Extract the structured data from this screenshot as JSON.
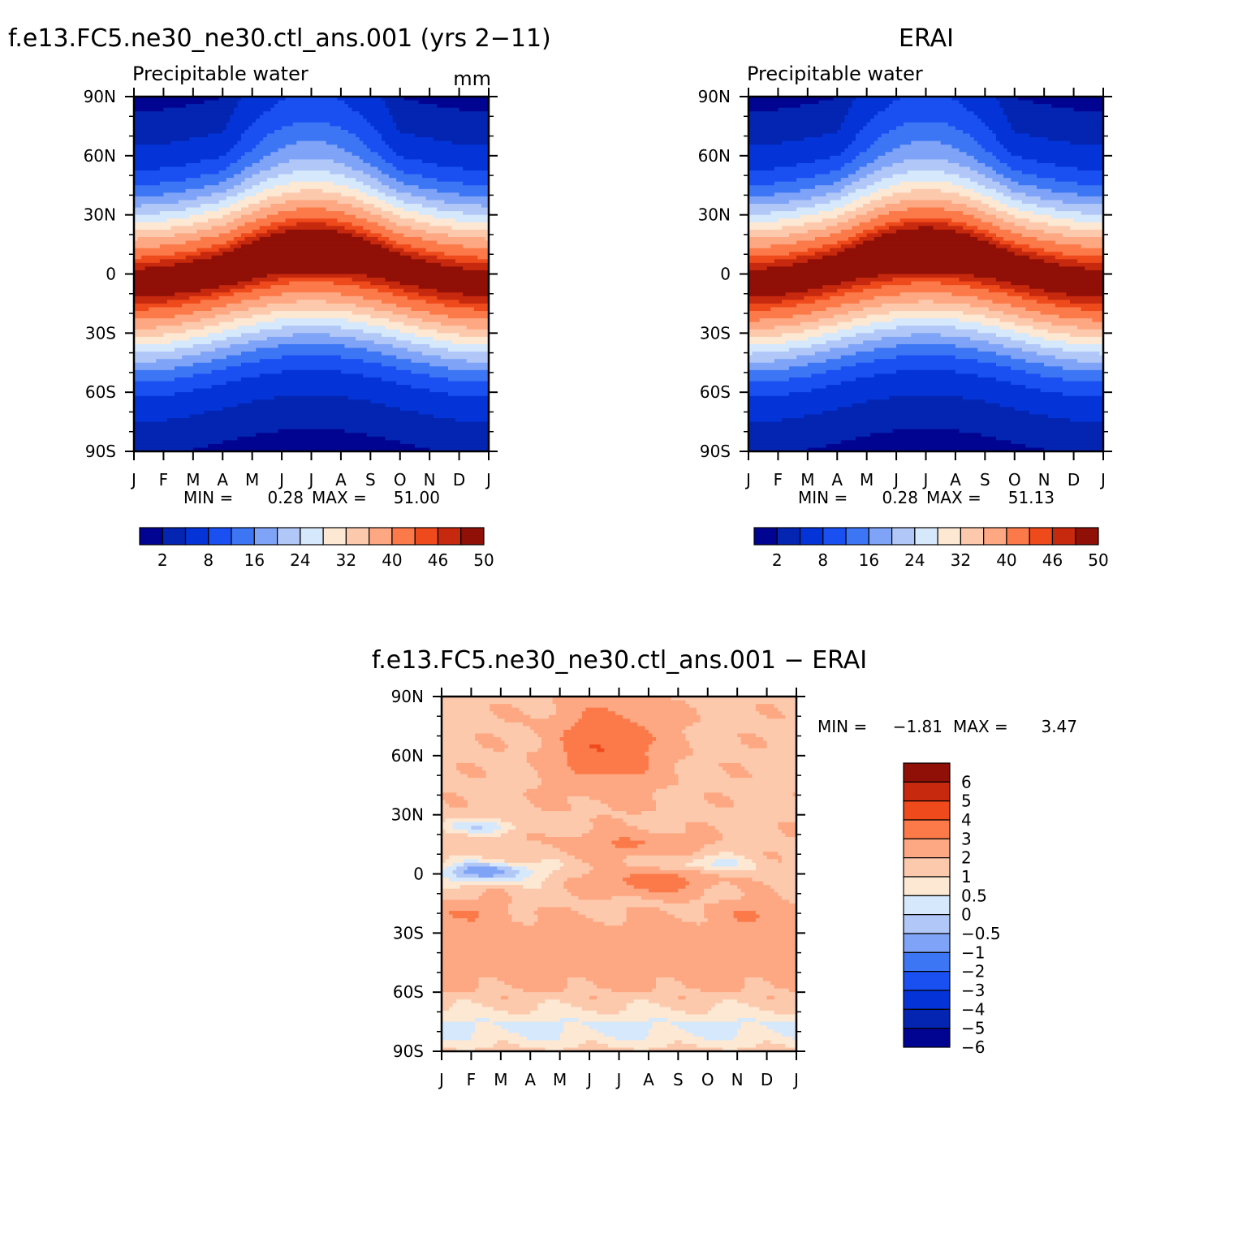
{
  "colors": {
    "precip_palette": [
      "#000490",
      "#0325b1",
      "#0434d8",
      "#1a50f2",
      "#3d76f5",
      "#7fa3f7",
      "#b1c7f8",
      "#d6e8fc",
      "#fde8d4",
      "#fdc9ad",
      "#fda882",
      "#fc7a4a",
      "#ef4a1c",
      "#c7290e",
      "#900f07"
    ],
    "diff_palette": [
      "#000490",
      "#0325b1",
      "#0434d8",
      "#1a50f2",
      "#3d76f5",
      "#7fa3f7",
      "#b1c7f8",
      "#d6e8fc",
      "#fde8d4",
      "#fdc9ad",
      "#fda882",
      "#fc7a4a",
      "#ef4a1c",
      "#c7290e",
      "#900f07"
    ]
  },
  "chart_data": [
    {
      "type": "heatmap",
      "title": "f.e13.FC5.ne30_ne30.ctl_ans.001 (yrs 2−11)",
      "subtitle": "Precipitable water",
      "units": "mm",
      "x_ticks": [
        "J",
        "F",
        "M",
        "A",
        "M",
        "J",
        "J",
        "A",
        "S",
        "O",
        "N",
        "D",
        "J"
      ],
      "y_ticks": [
        "90N",
        "60N",
        "30N",
        "0",
        "30S",
        "60S",
        "90S"
      ],
      "y_values": [
        90,
        60,
        30,
        0,
        -30,
        -60,
        -90
      ],
      "min_label": "MIN =",
      "min_value": "0.28",
      "max_label": "MAX =",
      "max_value": "51.00",
      "levels": [
        2,
        4,
        8,
        12,
        16,
        20,
        24,
        28,
        32,
        36,
        40,
        44,
        46,
        48,
        50
      ],
      "colorbar_labels": [
        "2",
        "8",
        "16",
        "24",
        "32",
        "40",
        "46",
        "50"
      ],
      "zmin": 0.28,
      "zmax": 51.0
    },
    {
      "type": "heatmap",
      "title": "ERAI",
      "subtitle": "Precipitable water",
      "x_ticks": [
        "J",
        "F",
        "M",
        "A",
        "M",
        "J",
        "J",
        "A",
        "S",
        "O",
        "N",
        "D",
        "J"
      ],
      "y_ticks": [
        "90N",
        "60N",
        "30N",
        "0",
        "30S",
        "60S",
        "90S"
      ],
      "y_values": [
        90,
        60,
        30,
        0,
        -30,
        -60,
        -90
      ],
      "min_label": "MIN =",
      "min_value": "0.28",
      "max_label": "MAX =",
      "max_value": "51.13",
      "levels": [
        2,
        4,
        8,
        12,
        16,
        20,
        24,
        28,
        32,
        36,
        40,
        44,
        46,
        48,
        50
      ],
      "colorbar_labels": [
        "2",
        "8",
        "16",
        "24",
        "32",
        "40",
        "46",
        "50"
      ],
      "zmin": 0.28,
      "zmax": 51.13
    },
    {
      "type": "heatmap",
      "title": "f.e13.FC5.ne30_ne30.ctl_ans.001 − ERAI",
      "x_ticks": [
        "J",
        "F",
        "M",
        "A",
        "M",
        "J",
        "J",
        "A",
        "S",
        "O",
        "N",
        "D",
        "J"
      ],
      "y_ticks": [
        "90N",
        "60N",
        "30N",
        "0",
        "30S",
        "60S",
        "90S"
      ],
      "y_values": [
        90,
        60,
        30,
        0,
        -30,
        -60,
        -90
      ],
      "min_label": "MIN =",
      "min_value": "−1.81",
      "max_label": "MAX =",
      "max_value": "3.47",
      "levels": [
        -6,
        -5,
        -4,
        -3,
        -2,
        -1,
        -0.5,
        0,
        0.5,
        1,
        2,
        3,
        4,
        5,
        6
      ],
      "colorbar_labels": [
        "6",
        "5",
        "4",
        "3",
        "2",
        "1",
        "0.5",
        "0",
        "−0.5",
        "−1",
        "−2",
        "−3",
        "−4",
        "−5",
        "−6"
      ],
      "zmin": -1.81,
      "zmax": 3.47
    }
  ]
}
